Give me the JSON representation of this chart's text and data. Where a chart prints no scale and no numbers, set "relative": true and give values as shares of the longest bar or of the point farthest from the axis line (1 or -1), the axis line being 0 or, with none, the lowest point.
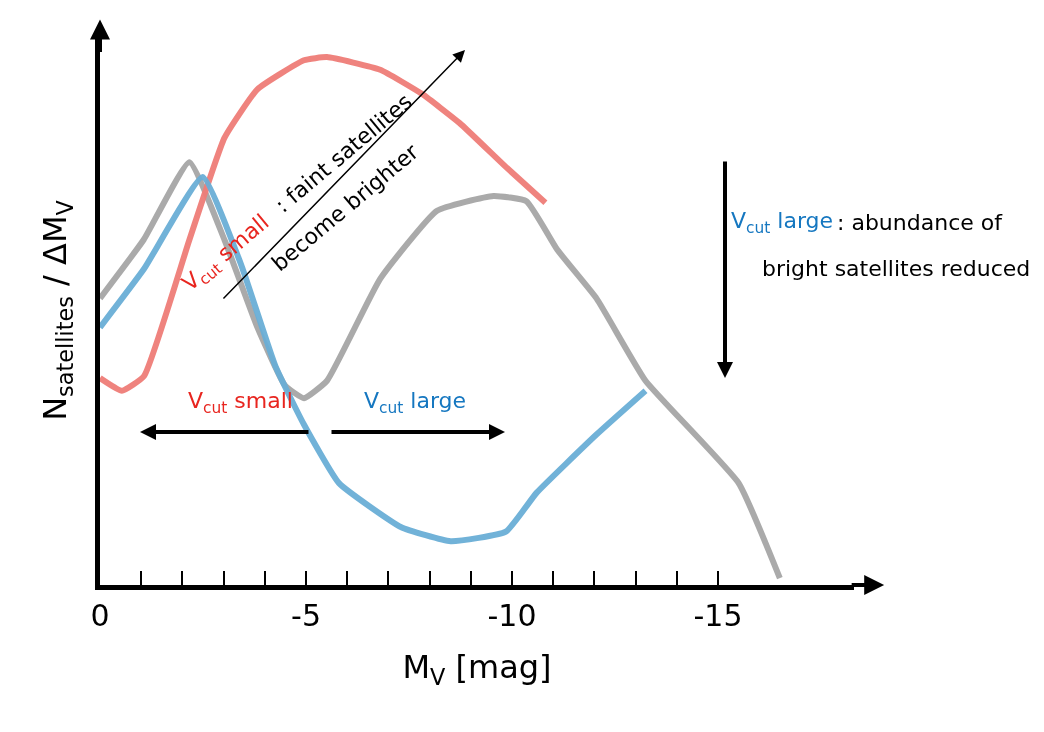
{
  "chart_data": {
    "type": "line",
    "relative": true,
    "xlabel": "M$_{V}$ [mag]",
    "ylabel": "N$_{satellites}$ / ΔM$_{V}$",
    "xlim": [
      0,
      -18.3
    ],
    "xticks": [
      0,
      {
        "value": -1,
        "label": null
      },
      {
        "value": -2,
        "label": null
      },
      {
        "value": -3,
        "label": null
      },
      {
        "value": -4,
        "label": null
      },
      -5,
      {
        "value": -6,
        "label": null
      },
      {
        "value": -7,
        "label": null
      },
      {
        "value": -8,
        "label": null
      },
      {
        "value": -9,
        "label": null
      },
      -10,
      {
        "value": -11,
        "label": null
      },
      {
        "value": -12,
        "label": null
      },
      {
        "value": -13,
        "label": null
      },
      {
        "value": -14,
        "label": null
      },
      -15
    ],
    "tick_labels": "x",
    "marker": "none",
    "line_style": "solid",
    "series": [
      {
        "color": "#a6a6a6",
        "x": [
          0,
          -1.06,
          -2.17,
          -3.02,
          -3.82,
          -4.49,
          -4.95,
          -5.51,
          -6.8,
          -8.18,
          -9.55,
          -10.35,
          -11.1,
          -12.05,
          -13.24,
          -15.5,
          -16.5
        ],
        "values": [
          0.543,
          0.654,
          0.801,
          0.654,
          0.488,
          0.378,
          0.354,
          0.387,
          0.58,
          0.709,
          0.737,
          0.727,
          0.635,
          0.543,
          0.387,
          0.193,
          0.013
        ]
      },
      {
        "color": "#ef7d78",
        "x": [
          0,
          -0.53,
          -1.07,
          -2.17,
          -3.02,
          -3.82,
          -4.95,
          -5.51,
          -6.8,
          -7.82,
          -8.73,
          -9.85,
          -10.81
        ],
        "values": [
          0.392,
          0.368,
          0.396,
          0.654,
          0.847,
          0.939,
          0.994,
          1.0,
          0.976,
          0.93,
          0.875,
          0.792,
          0.724
        ]
      },
      {
        "color": "#6aaed6",
        "x": [
          0,
          -1.07,
          -2.49,
          -3.42,
          -4.26,
          -4.95,
          -5.8,
          -7.3,
          -8.51,
          -9.85,
          -10.6,
          -12.05,
          -13.24
        ],
        "values": [
          0.488,
          0.599,
          0.773,
          0.608,
          0.414,
          0.304,
          0.193,
          0.11,
          0.083,
          0.101,
          0.175,
          0.285,
          0.368
        ]
      }
    ],
    "annotations": [
      "V$_{cut}$ small",
      ": faint satellites",
      "become brighter",
      "V$_{cut}$ large",
      ": abundance of",
      "bright satellites reduced",
      "V$_{cut}$ small",
      "V$_{cut}$ large"
    ]
  }
}
